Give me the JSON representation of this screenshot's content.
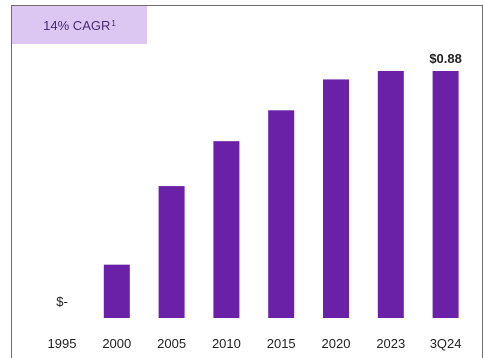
{
  "badge": {
    "text": "14% CAGR",
    "superscript": "1"
  },
  "chart_data": {
    "type": "bar",
    "categories": [
      "1995",
      "2000",
      "2005",
      "2010",
      "2015",
      "2020",
      "2023",
      "3Q24"
    ],
    "values": [
      0,
      0.19,
      0.47,
      0.63,
      0.74,
      0.85,
      0.88,
      0.88
    ],
    "data_labels": [
      "$-",
      "",
      "",
      "",
      "",
      "",
      "",
      "$0.88"
    ],
    "ylim": [
      0,
      0.88
    ],
    "bar_color": "#6a21a8",
    "badge_color": "#dcc6f2",
    "grid": false,
    "title": "",
    "xlabel": "",
    "ylabel": ""
  }
}
